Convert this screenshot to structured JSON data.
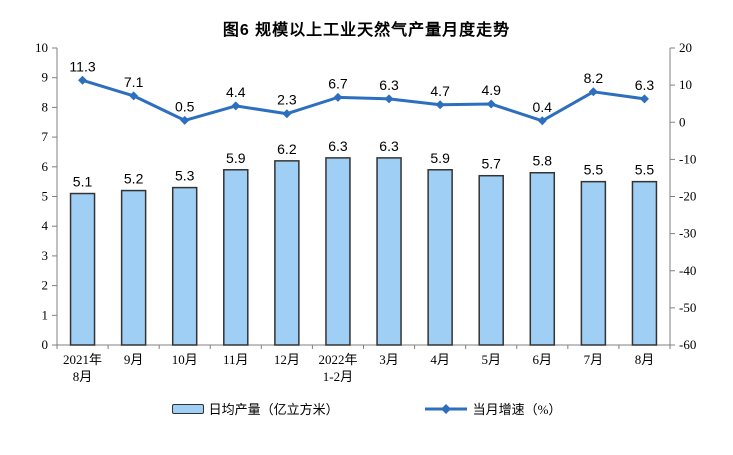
{
  "chart_data": {
    "type": "bar+line",
    "title": "图6 规模以上工业天然气产量月度走势",
    "categories": [
      [
        "2021年",
        "8月"
      ],
      [
        "9月"
      ],
      [
        "10月"
      ],
      [
        "11月"
      ],
      [
        "12月"
      ],
      [
        "2022年",
        "1-2月"
      ],
      [
        "3月"
      ],
      [
        "4月"
      ],
      [
        "5月"
      ],
      [
        "6月"
      ],
      [
        "7月"
      ],
      [
        "8月"
      ]
    ],
    "series": [
      {
        "name": "日均产量（亿立方米）",
        "type": "bar",
        "axis": "left",
        "values": [
          5.1,
          5.2,
          5.3,
          5.9,
          6.2,
          6.3,
          6.3,
          5.9,
          5.7,
          5.8,
          5.5,
          5.5
        ]
      },
      {
        "name": "当月增速（%）",
        "type": "line",
        "axis": "right",
        "values": [
          11.3,
          7.1,
          0.5,
          4.4,
          2.3,
          6.7,
          6.3,
          4.7,
          4.9,
          0.4,
          8.2,
          6.3
        ]
      }
    ],
    "left_axis": {
      "min": 0,
      "max": 10,
      "step": 1
    },
    "right_axis": {
      "min": -60,
      "max": 20,
      "step": 10
    },
    "grid": false,
    "legend_position": "bottom",
    "colors": {
      "bar_fill": "#9FCFF5",
      "bar_stroke": "#333333",
      "line": "#2D6FBE",
      "axis": "#808080",
      "text": "#000000"
    }
  }
}
